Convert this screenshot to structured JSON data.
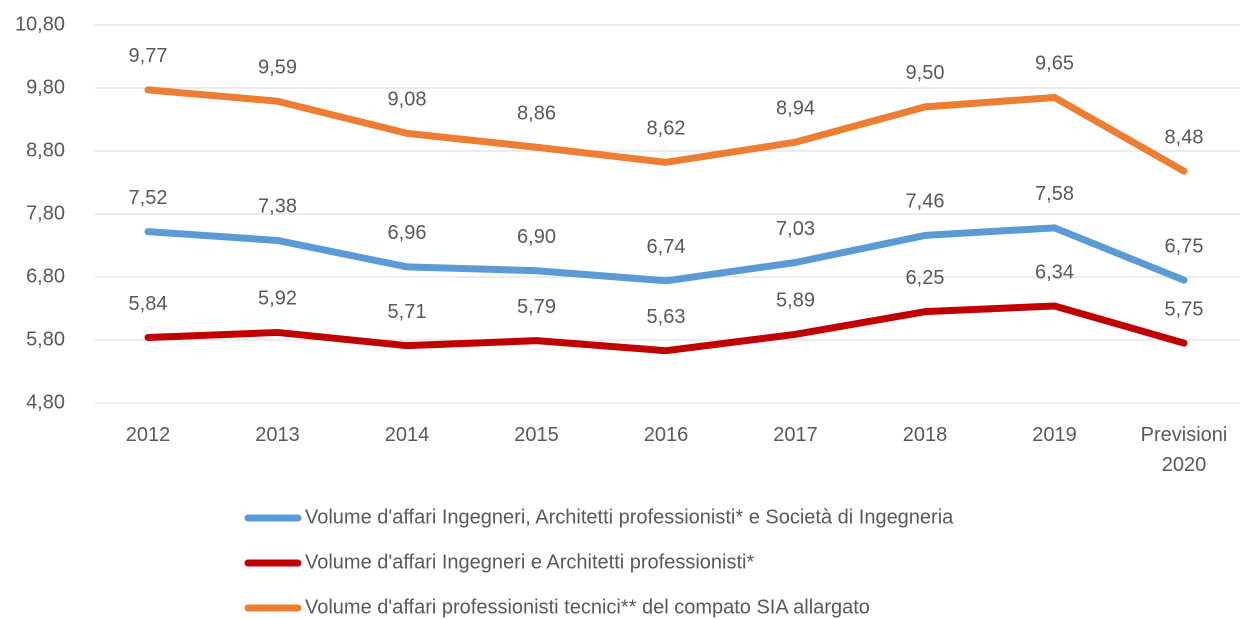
{
  "chart_data": {
    "type": "line",
    "categories": [
      "2012",
      "2013",
      "2014",
      "2015",
      "2016",
      "2017",
      "2018",
      "2019",
      "Previsioni 2020"
    ],
    "series": [
      {
        "name": "Volume d'affari Ingegneri, Architetti professionisti* e Società di Ingegneria",
        "color": "#5b9bd5",
        "values": [
          7.52,
          7.38,
          6.96,
          6.9,
          6.74,
          7.03,
          7.46,
          7.58,
          6.75
        ],
        "value_labels": [
          "7,52",
          "7,38",
          "6,96",
          "6,90",
          "6,74",
          "7,03",
          "7,46",
          "7,58",
          "6,75"
        ]
      },
      {
        "name": "Volume d'affari Ingegneri e Architetti professionisti*",
        "color": "#c00000",
        "values": [
          5.84,
          5.92,
          5.71,
          5.79,
          5.63,
          5.89,
          6.25,
          6.34,
          5.75
        ],
        "value_labels": [
          "5,84",
          "5,92",
          "5,71",
          "5,79",
          "5,63",
          "5,89",
          "6,25",
          "6,34",
          "5,75"
        ]
      },
      {
        "name": "Volume d'affari professionisti tecnici** del compato SIA allargato",
        "color": "#ed7d31",
        "values": [
          9.77,
          9.59,
          9.08,
          8.86,
          8.62,
          8.94,
          9.5,
          9.65,
          8.48
        ],
        "value_labels": [
          "9,77",
          "9,59",
          "9,08",
          "8,86",
          "8,62",
          "8,94",
          "9,50",
          "9,65",
          "8,48"
        ]
      }
    ],
    "ylim": [
      4.8,
      10.8
    ],
    "yticks": [
      {
        "value": 4.8,
        "label": "4,80"
      },
      {
        "value": 5.8,
        "label": "5,80"
      },
      {
        "value": 6.8,
        "label": "6,80"
      },
      {
        "value": 7.8,
        "label": "7,80"
      },
      {
        "value": 8.8,
        "label": "8,80"
      },
      {
        "value": 9.8,
        "label": "9,80"
      },
      {
        "value": 10.8,
        "label": "10,80"
      }
    ],
    "grid": true,
    "legend": "bottom"
  }
}
